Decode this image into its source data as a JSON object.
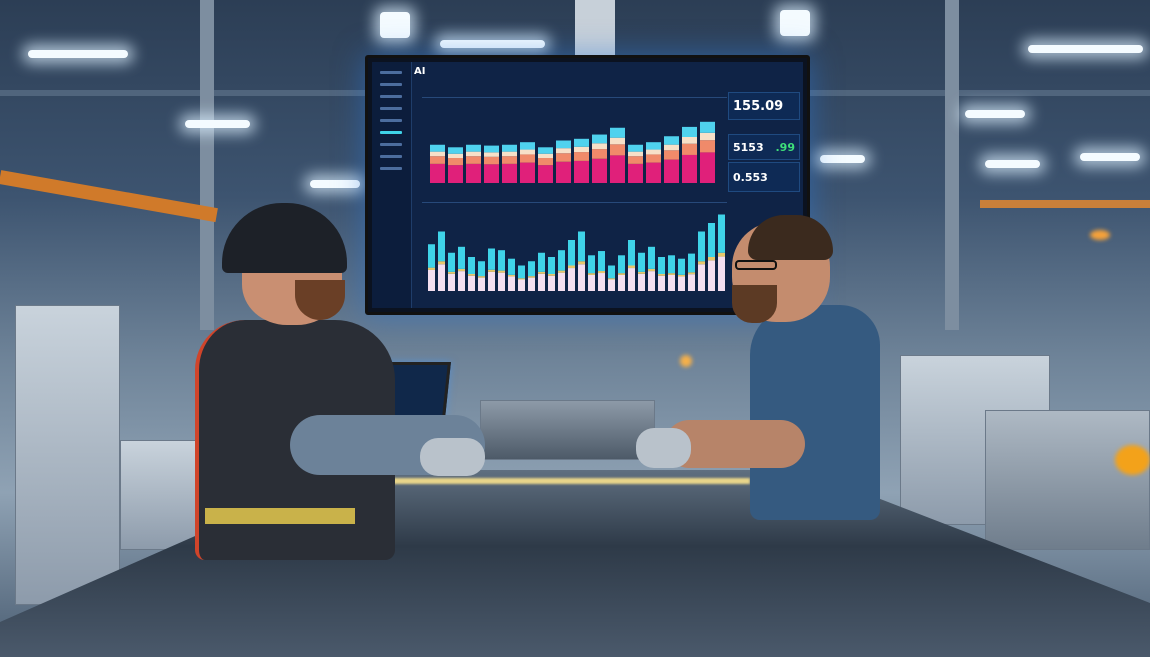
{
  "dashboard": {
    "logo": "AI",
    "kpis": [
      {
        "value": "155.09"
      },
      {
        "value": "5153",
        "delta": ".99"
      },
      {
        "value": "0.553"
      }
    ]
  },
  "colors": {
    "accent": "#3fd3e8",
    "magenta": "#e0207a",
    "panel": "#0f2346"
  }
}
